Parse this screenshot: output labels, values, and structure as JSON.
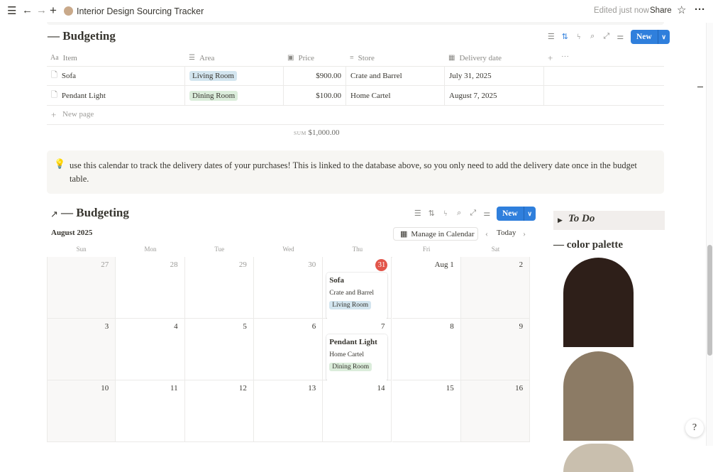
{
  "topbar": {
    "title": "Interior Design Sourcing Tracker",
    "edited": "Edited just now",
    "share": "Share",
    "icons": [
      "menu-icon",
      "back-arrow-icon",
      "forward-arrow-icon",
      "plus-icon",
      "star-icon",
      "more-icon"
    ]
  },
  "table": {
    "title": "— Budgeting",
    "new_label": "New",
    "columns": [
      {
        "label": "Item",
        "icon": "Aa"
      },
      {
        "label": "Area",
        "icon": "☰"
      },
      {
        "label": "Price",
        "icon": "▣"
      },
      {
        "label": "Store",
        "icon": "≡"
      },
      {
        "label": "Delivery date",
        "icon": "▦"
      }
    ],
    "rows": [
      {
        "item": "Sofa",
        "area": "Living Room",
        "price": "$900.00",
        "store": "Crate and Barrel",
        "date": "July 31, 2025"
      },
      {
        "item": "Pendant Light",
        "area": "Dining Room",
        "price": "$100.00",
        "store": "Home Cartel",
        "date": "August 7, 2025"
      }
    ],
    "new_page": "New page",
    "sum_label": "SUM",
    "sum_value": "$1,000.00"
  },
  "callout": {
    "icon": "💡",
    "text": "use this calendar to track the delivery dates of your purchases! This is linked to the database above, so you only need to add the delivery date once in the budget table."
  },
  "calendar": {
    "title": "— Budgeting",
    "arrow": "↗",
    "month": "August 2025",
    "manage": "Manage in Calendar",
    "today": "Today",
    "new_label": "New",
    "weekdays": [
      "Sun",
      "Mon",
      "Tue",
      "Wed",
      "Thu",
      "Fri",
      "Sat"
    ],
    "days": [
      [
        "27",
        "28",
        "29",
        "30",
        "31",
        "Aug 1",
        "2"
      ],
      [
        "3",
        "4",
        "5",
        "6",
        "7",
        "8",
        "9"
      ],
      [
        "10",
        "11",
        "12",
        "13",
        "14",
        "15",
        "16"
      ]
    ],
    "prev_month_days": [
      "27",
      "28",
      "29",
      "30"
    ],
    "today_day": "31",
    "events": [
      {
        "day": "31",
        "title": "Sofa",
        "store": "Crate and Barrel",
        "area": "Living Room"
      },
      {
        "day": "7",
        "title": "Pendant Light",
        "store": "Home Cartel",
        "area": "Dining Room"
      }
    ]
  },
  "sidebar": {
    "todo": "To Do",
    "palette_title": "— color palette",
    "swatches": [
      "#2e1f19",
      "#8c7b65",
      "#c9bfae"
    ]
  },
  "colors": {
    "accent": "#2f7fdc",
    "living_room_tag": "#d3e5ef",
    "dining_room_tag": "#dbeddb",
    "today": "#e2564b",
    "callout_bg": "#f7f6f3"
  }
}
